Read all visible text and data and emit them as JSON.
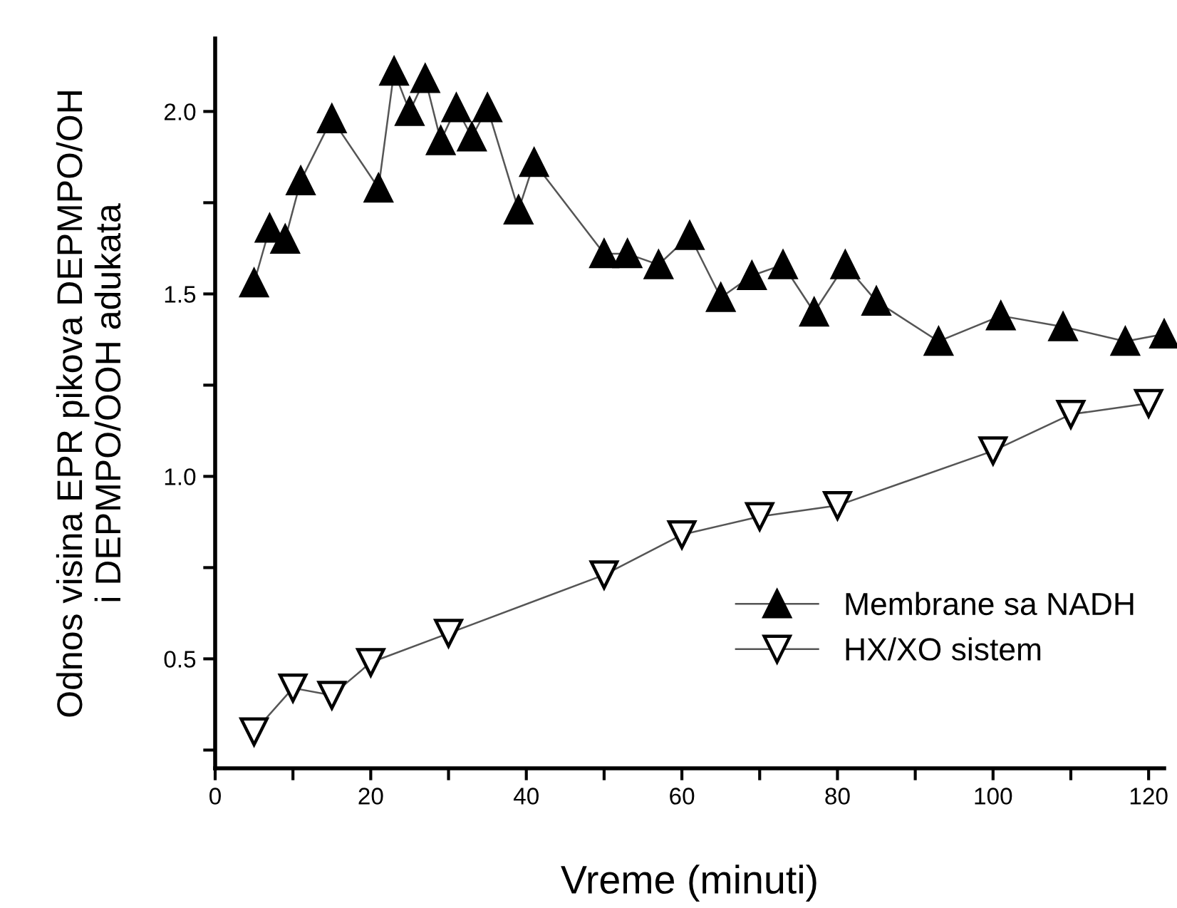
{
  "chart_data": {
    "type": "line",
    "xlabel": "Vreme (minuti)",
    "ylabel": "Odnos visina EPR pikova DEPMPO/OH\ni DEPMPO/OOH adukata",
    "xlim": [
      0,
      122
    ],
    "ylim": [
      0.2,
      2.2
    ],
    "xticks": [
      0,
      {
        "value": 10,
        "label": null
      },
      20,
      {
        "value": 30,
        "label": null
      },
      40,
      {
        "value": 50,
        "label": null
      },
      60,
      {
        "value": 70,
        "label": null
      },
      80,
      {
        "value": 90,
        "label": null
      },
      100,
      {
        "value": 110,
        "label": null
      },
      120
    ],
    "yticks": [
      {
        "value": 0.25,
        "label": null
      },
      0.5,
      {
        "value": 0.75,
        "label": null
      },
      {
        "value": 1.0,
        "label": "1.0"
      },
      {
        "value": 1.25,
        "label": null
      },
      1.5,
      {
        "value": 1.75,
        "label": null
      },
      {
        "value": 2.0,
        "label": "2.0"
      }
    ],
    "grid": false,
    "legend": "bottom right",
    "line_style": "solid",
    "series": [
      {
        "name": "Membrane sa NADH",
        "color": "#000000",
        "marker": "triangle",
        "x": [
          5,
          7,
          9,
          11,
          15,
          21,
          23,
          25,
          27,
          29,
          31,
          33,
          35,
          39,
          41,
          50,
          53,
          57,
          61,
          65,
          69,
          73,
          77,
          81,
          85,
          93,
          101,
          109,
          117,
          122
        ],
        "values": [
          1.53,
          1.68,
          1.65,
          1.81,
          1.98,
          1.79,
          2.11,
          2.0,
          2.09,
          1.92,
          2.01,
          1.93,
          2.01,
          1.73,
          1.86,
          1.61,
          1.61,
          1.58,
          1.66,
          1.49,
          1.55,
          1.58,
          1.45,
          1.58,
          1.48,
          1.37,
          1.44,
          1.41,
          1.37,
          1.39
        ]
      },
      {
        "name": "HX/XO sistem",
        "color": "#000000",
        "marker": "triangle-down",
        "x": [
          5,
          10,
          15,
          20,
          30,
          50,
          60,
          70,
          80,
          100,
          110,
          120
        ],
        "values": [
          0.3,
          0.42,
          0.4,
          0.49,
          0.57,
          0.73,
          0.84,
          0.89,
          0.92,
          1.07,
          1.17,
          1.2
        ]
      }
    ]
  }
}
